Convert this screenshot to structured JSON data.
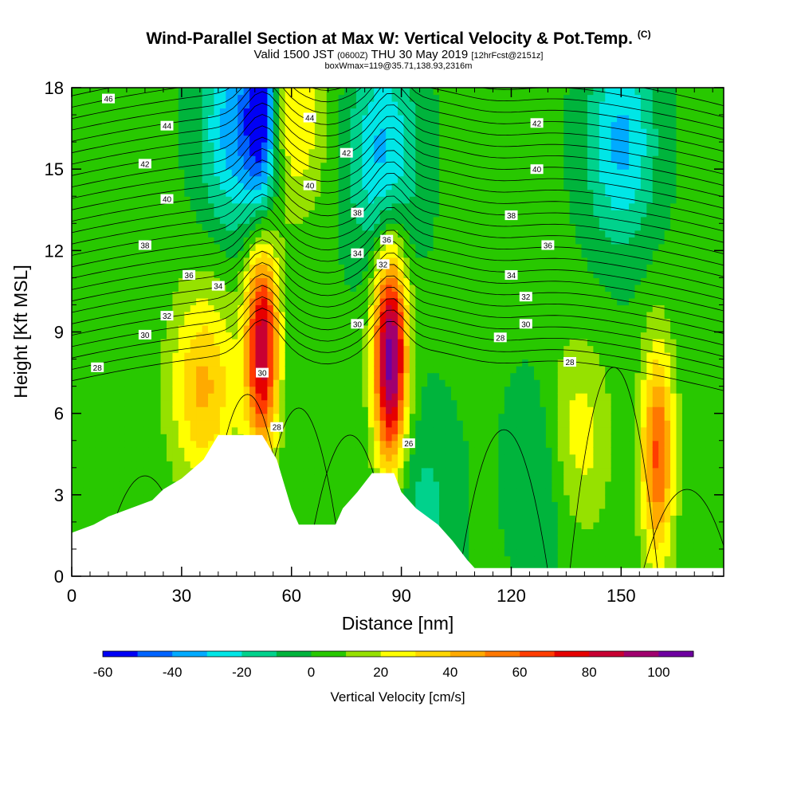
{
  "title": {
    "main": "Wind-Parallel Section at Max W: Vertical Velocity & Pot.Temp.",
    "copyright": "(C)",
    "valid_prefix": "Valid 1500 JST",
    "valid_utc": "(0600Z)",
    "valid_date": "THU 30 May 2019",
    "forecast": "[12hrFcst@2151z]",
    "box": "boxWmax=119@35.71,138.93,2316m"
  },
  "chart_data": {
    "type": "heatmap",
    "xlabel": "Distance [nm]",
    "ylabel": "Height [Kft MSL]",
    "xlim": [
      0,
      178
    ],
    "ylim": [
      0,
      18
    ],
    "x_ticks": [
      "0",
      "30",
      "60",
      "90",
      "120",
      "150"
    ],
    "y_ticks": [
      "0",
      "3",
      "6",
      "9",
      "12",
      "15",
      "18"
    ],
    "colorbar": {
      "title": "Vertical Velocity [cm/s]",
      "levels": [
        -60,
        -50,
        -40,
        -30,
        -20,
        -10,
        0,
        10,
        20,
        30,
        40,
        50,
        60,
        70,
        80,
        90,
        100,
        110
      ],
      "labels": [
        "-60",
        "-40",
        "-20",
        "0",
        "20",
        "40",
        "60",
        "80",
        "100"
      ],
      "colors": [
        "#0000f5",
        "#0064ff",
        "#00aaff",
        "#00e6e6",
        "#00d28c",
        "#00b43c",
        "#28c800",
        "#96e100",
        "#ffff00",
        "#ffd700",
        "#ffaa00",
        "#ff7800",
        "#ff3c00",
        "#e60000",
        "#c80032",
        "#a0006e",
        "#6e00a0"
      ]
    },
    "terrain_height_kft": [
      [
        0,
        1.6
      ],
      [
        6,
        1.9
      ],
      [
        10,
        2.2
      ],
      [
        16,
        2.5
      ],
      [
        22,
        2.8
      ],
      [
        25,
        3.2
      ],
      [
        30,
        3.6
      ],
      [
        36,
        4.3
      ],
      [
        40,
        5.2
      ],
      [
        52,
        5.2
      ],
      [
        56,
        4.3
      ],
      [
        58,
        3.4
      ],
      [
        60,
        2.5
      ],
      [
        62,
        1.9
      ],
      [
        72,
        1.9
      ],
      [
        74,
        2.5
      ],
      [
        78,
        3.1
      ],
      [
        82,
        3.8
      ],
      [
        88,
        3.8
      ],
      [
        90,
        3.1
      ],
      [
        94,
        2.5
      ],
      [
        100,
        1.9
      ],
      [
        104,
        1.3
      ],
      [
        108,
        0.6
      ],
      [
        110,
        0.3
      ],
      [
        178,
        0.3
      ]
    ],
    "w_features": [
      {
        "x": 36,
        "y": 7.0,
        "w": 40
      },
      {
        "x": 52,
        "y": 8.5,
        "w": 85
      },
      {
        "x": 87,
        "y": 8.0,
        "w": 105
      },
      {
        "x": 137,
        "y": 5.0,
        "w": 30
      },
      {
        "x": 160,
        "y": 4.5,
        "w": 60
      },
      {
        "x": 52,
        "y": 17.2,
        "w": -55
      },
      {
        "x": 45,
        "y": 16.5,
        "w": -40
      },
      {
        "x": 85,
        "y": 15.5,
        "w": -35
      },
      {
        "x": 150,
        "y": 16.0,
        "w": -35
      },
      {
        "x": 60,
        "y": 17.0,
        "w": 30
      },
      {
        "x": 130,
        "y": 4.0,
        "w": -20
      },
      {
        "x": 96,
        "y": 2.5,
        "w": -15
      }
    ],
    "theta_labels": [
      {
        "text": "46",
        "x": 10,
        "y": 17.6
      },
      {
        "text": "44",
        "x": 26,
        "y": 16.6
      },
      {
        "text": "42",
        "x": 20,
        "y": 15.2
      },
      {
        "text": "40",
        "x": 26,
        "y": 13.9
      },
      {
        "text": "38",
        "x": 20,
        "y": 12.2
      },
      {
        "text": "36",
        "x": 32,
        "y": 11.1
      },
      {
        "text": "34",
        "x": 40,
        "y": 10.7
      },
      {
        "text": "32",
        "x": 26,
        "y": 9.6
      },
      {
        "text": "30",
        "x": 20,
        "y": 8.9
      },
      {
        "text": "28",
        "x": 7,
        "y": 7.7
      },
      {
        "text": "44",
        "x": 65,
        "y": 16.9
      },
      {
        "text": "42",
        "x": 75,
        "y": 15.6
      },
      {
        "text": "40",
        "x": 65,
        "y": 14.4
      },
      {
        "text": "38",
        "x": 78,
        "y": 13.4
      },
      {
        "text": "36",
        "x": 86,
        "y": 12.4
      },
      {
        "text": "34",
        "x": 78,
        "y": 11.9
      },
      {
        "text": "32",
        "x": 85,
        "y": 11.5
      },
      {
        "text": "30",
        "x": 78,
        "y": 9.3
      },
      {
        "text": "30",
        "x": 52,
        "y": 7.5
      },
      {
        "text": "28",
        "x": 56,
        "y": 5.5
      },
      {
        "text": "26",
        "x": 92,
        "y": 4.9
      },
      {
        "text": "42",
        "x": 127,
        "y": 16.7
      },
      {
        "text": "40",
        "x": 127,
        "y": 15.0
      },
      {
        "text": "38",
        "x": 120,
        "y": 13.3
      },
      {
        "text": "36",
        "x": 130,
        "y": 12.2
      },
      {
        "text": "34",
        "x": 120,
        "y": 11.1
      },
      {
        "text": "32",
        "x": 124,
        "y": 10.3
      },
      {
        "text": "30",
        "x": 124,
        "y": 9.3
      },
      {
        "text": "28",
        "x": 117,
        "y": 8.8
      },
      {
        "text": "28",
        "x": 136,
        "y": 7.9
      }
    ]
  }
}
